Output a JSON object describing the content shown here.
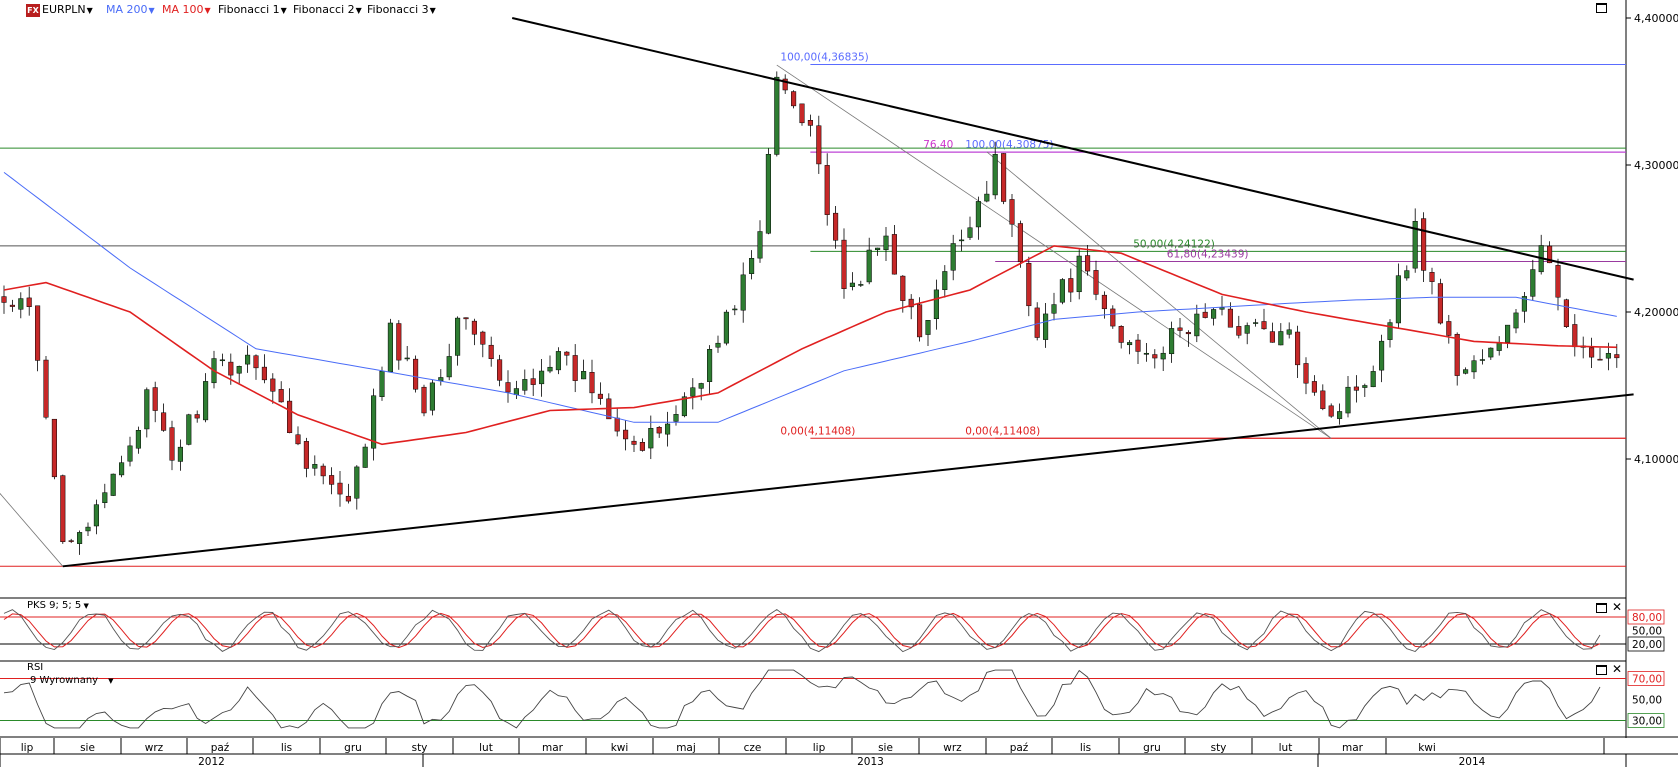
{
  "toolbar": {
    "symbol": "EURPLN",
    "logo_text": "FX",
    "indicators": [
      {
        "label": "MA 200",
        "color": "#4a6cf7"
      },
      {
        "label": "MA 100",
        "color": "#e02020"
      },
      {
        "label": "Fibonacci 1",
        "color": "#000000"
      },
      {
        "label": "Fibonacci 2",
        "color": "#000000"
      },
      {
        "label": "Fibonacci 3",
        "color": "#000000"
      }
    ]
  },
  "panels": {
    "stochastic": {
      "label": "PKS 9; 5; 5",
      "levels": [
        "80,00",
        "50,00",
        "20,00"
      ]
    },
    "rsi": {
      "label": "RSI",
      "sublabel": "9 Wyrownany",
      "levels": [
        "70,00",
        "50,00",
        "30,00"
      ]
    }
  },
  "chart_data": {
    "type": "candlestick",
    "instrument": "EURPLN",
    "y_axis": {
      "ticks": [
        "4,40000",
        "4,30000",
        "4,20000",
        "4,10000"
      ]
    },
    "months": [
      "lip",
      "sie",
      "wrz",
      "paź",
      "lis",
      "gru",
      "sty",
      "lut",
      "mar",
      "kwi",
      "maj",
      "cze",
      "lip",
      "sie",
      "wrz",
      "paź",
      "lis",
      "gru",
      "sty",
      "lut",
      "mar",
      "kwi"
    ],
    "years": [
      "2012",
      "2013",
      "2014"
    ],
    "close_anchors": [
      [
        0,
        4.205
      ],
      [
        3,
        4.2
      ],
      [
        7,
        4.05
      ],
      [
        11,
        4.06
      ],
      [
        17,
        4.14
      ],
      [
        20,
        4.1
      ],
      [
        25,
        4.16
      ],
      [
        30,
        4.17
      ],
      [
        35,
        4.11
      ],
      [
        41,
        4.065
      ],
      [
        46,
        4.185
      ],
      [
        50,
        4.14
      ],
      [
        55,
        4.2
      ],
      [
        60,
        4.14
      ],
      [
        65,
        4.17
      ],
      [
        70,
        4.15
      ],
      [
        76,
        4.105
      ],
      [
        81,
        4.14
      ],
      [
        85,
        4.18
      ],
      [
        90,
        4.25
      ],
      [
        92,
        4.36
      ],
      [
        96,
        4.33
      ],
      [
        100,
        4.21
      ],
      [
        105,
        4.25
      ],
      [
        109,
        4.18
      ],
      [
        113,
        4.24
      ],
      [
        118,
        4.3
      ],
      [
        123,
        4.19
      ],
      [
        128,
        4.23
      ],
      [
        133,
        4.18
      ],
      [
        138,
        4.175
      ],
      [
        143,
        4.2
      ],
      [
        148,
        4.19
      ],
      [
        153,
        4.18
      ],
      [
        158,
        4.13
      ],
      [
        163,
        4.165
      ],
      [
        168,
        4.255
      ],
      [
        173,
        4.16
      ],
      [
        178,
        4.175
      ],
      [
        183,
        4.24
      ],
      [
        188,
        4.17
      ],
      [
        192,
        4.163
      ]
    ],
    "moving_averages": [
      {
        "name": "MA 200",
        "color": "#4a6cf7",
        "points": [
          [
            0,
            4.295
          ],
          [
            15,
            4.23
          ],
          [
            30,
            4.175
          ],
          [
            45,
            4.16
          ],
          [
            60,
            4.145
          ],
          [
            75,
            4.125
          ],
          [
            85,
            4.125
          ],
          [
            100,
            4.16
          ],
          [
            115,
            4.18
          ],
          [
            125,
            4.195
          ],
          [
            135,
            4.2
          ],
          [
            150,
            4.205
          ],
          [
            160,
            4.208
          ],
          [
            170,
            4.21
          ],
          [
            180,
            4.21
          ],
          [
            192,
            4.197
          ]
        ]
      },
      {
        "name": "MA 100",
        "color": "#e02020",
        "points": [
          [
            0,
            4.215
          ],
          [
            5,
            4.22
          ],
          [
            15,
            4.2
          ],
          [
            25,
            4.16
          ],
          [
            35,
            4.13
          ],
          [
            45,
            4.11
          ],
          [
            55,
            4.118
          ],
          [
            65,
            4.133
          ],
          [
            75,
            4.135
          ],
          [
            85,
            4.145
          ],
          [
            95,
            4.175
          ],
          [
            105,
            4.2
          ],
          [
            115,
            4.215
          ],
          [
            125,
            4.245
          ],
          [
            133,
            4.24
          ],
          [
            145,
            4.212
          ],
          [
            155,
            4.2
          ],
          [
            165,
            4.19
          ],
          [
            175,
            4.18
          ],
          [
            185,
            4.177
          ],
          [
            192,
            4.176
          ]
        ]
      }
    ],
    "trendlines": [
      {
        "from": [
          60.5,
          4.4
        ],
        "to": [
          194,
          4.222
        ],
        "color": "#000000"
      },
      {
        "from": [
          7,
          4.027
        ],
        "to": [
          194,
          4.144
        ],
        "color": "#000000"
      }
    ],
    "levels": [
      {
        "value": 4.36835,
        "label": "100,00(4,36835)",
        "color": "#5a6cff",
        "from": 96,
        "label_at": 96
      },
      {
        "value": 4.30875,
        "label": "100,00(4,30875)",
        "color": "#5a6cff",
        "from": 96,
        "label_at": 118
      },
      {
        "value": 4.30875,
        "label": "76,40",
        "color": "#cc33cc",
        "from": 96,
        "label_at": 113
      },
      {
        "value": 4.3115,
        "label": "",
        "color": "#2a8a2a",
        "from": 0
      },
      {
        "value": 4.24122,
        "label": "50,00(4,24122)",
        "color": "#2a8a2a",
        "from": 96,
        "label_at": 138
      },
      {
        "value": 4.23439,
        "label": "61,80(4,23439)",
        "color": "#9a3aa0",
        "from": 118,
        "label_at": 142
      },
      {
        "value": 4.245,
        "label": "",
        "color": "#555555",
        "from": 0
      },
      {
        "value": 4.11408,
        "label": "0,00(4,11408)",
        "color": "#e02020",
        "from": 96,
        "label_at": 96
      },
      {
        "value": 4.11408,
        "label": "0,00(4,11408)",
        "color": "#e02020",
        "from": 118,
        "label_at": 118
      },
      {
        "value": 4.027,
        "label": "",
        "color": "#e02020",
        "from": 0
      }
    ]
  }
}
